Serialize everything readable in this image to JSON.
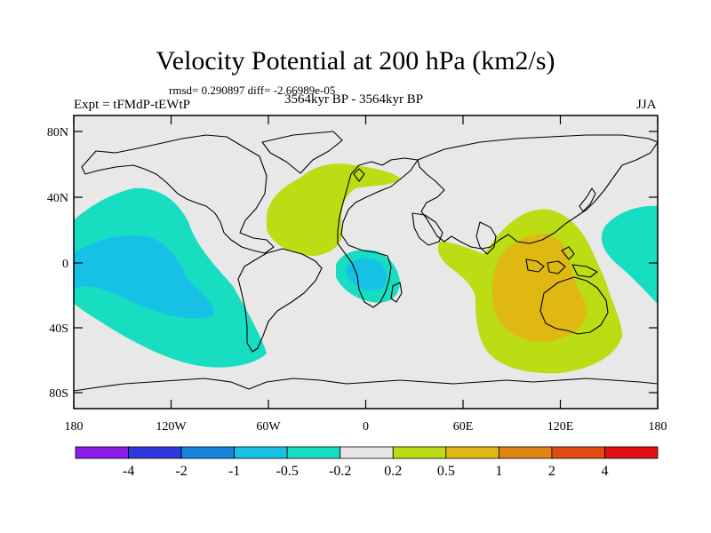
{
  "title": "Velocity Potential at 200 hPa (km2/s)",
  "stats_text": "rmsd= 0.290897 diff= -2.66989e-05",
  "left_label": "Expt = tFMdP-tEWtP",
  "center_label": "3564kyr BP - 3564kyr BP",
  "right_label": "JJA",
  "lat_ticks": [
    "80N",
    "40N",
    "0",
    "40S",
    "80S"
  ],
  "lon_ticks": [
    "180",
    "120W",
    "60W",
    "0",
    "60E",
    "120E",
    "180"
  ],
  "colorbar": {
    "labels": [
      "-4",
      "-2",
      "-1",
      "-0.5",
      "-0.2",
      "0.2",
      "0.5",
      "1",
      "2",
      "4"
    ],
    "colors": [
      "#8a1ee8",
      "#2e38dc",
      "#1684dc",
      "#17c1e6",
      "#17ddc1",
      "#e6e6e6",
      "#bcdc13",
      "#e0b812",
      "#e08413",
      "#e04c10",
      "#e01010"
    ]
  },
  "colors": {
    "background": "#e8e8e8",
    "coast": "#000000",
    "class_-0.5_-0.2": "#17ddc1",
    "class_-1_-0.5": "#17c1e6",
    "class_0.2_0.5": "#bcdc13",
    "class_0.5_1": "#e0b812"
  }
}
